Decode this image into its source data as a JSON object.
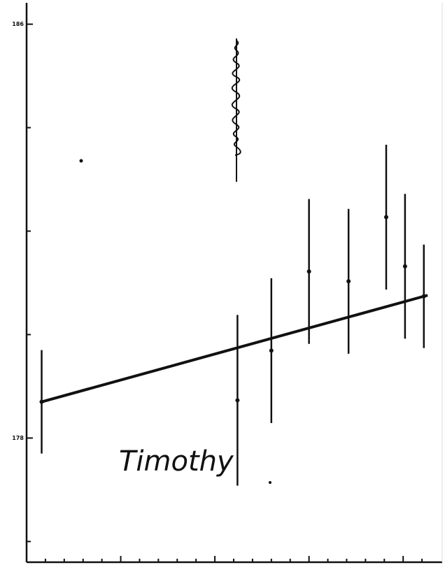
{
  "chart_data": {
    "type": "errorbar",
    "annotation": "Timothy",
    "x": [
      0.8,
      11.2,
      13,
      15,
      17.1,
      19.1,
      20.1,
      21.1
    ],
    "values": [
      178.7,
      178.73,
      179.69,
      181.22,
      181.03,
      182.27,
      181.32,
      180.74
    ],
    "errors": [
      1.0,
      1.65,
      1.4,
      1.4,
      1.4,
      1.4,
      1.4,
      1.0
    ],
    "fit": {
      "x": [
        0.8,
        21.3
      ],
      "values": [
        178.7,
        180.76
      ]
    },
    "color": "#111111",
    "xlim": [
      0,
      22
    ],
    "xticks": [
      1,
      2,
      3,
      4,
      5,
      6,
      7,
      8,
      9,
      10,
      11,
      12,
      13,
      14,
      15,
      16,
      17,
      18,
      19,
      20,
      21
    ],
    "ylim": [
      175.6,
      186.4
    ],
    "yticks": [
      178,
      186
    ],
    "yminorticks": [
      176,
      180,
      182,
      184
    ]
  }
}
